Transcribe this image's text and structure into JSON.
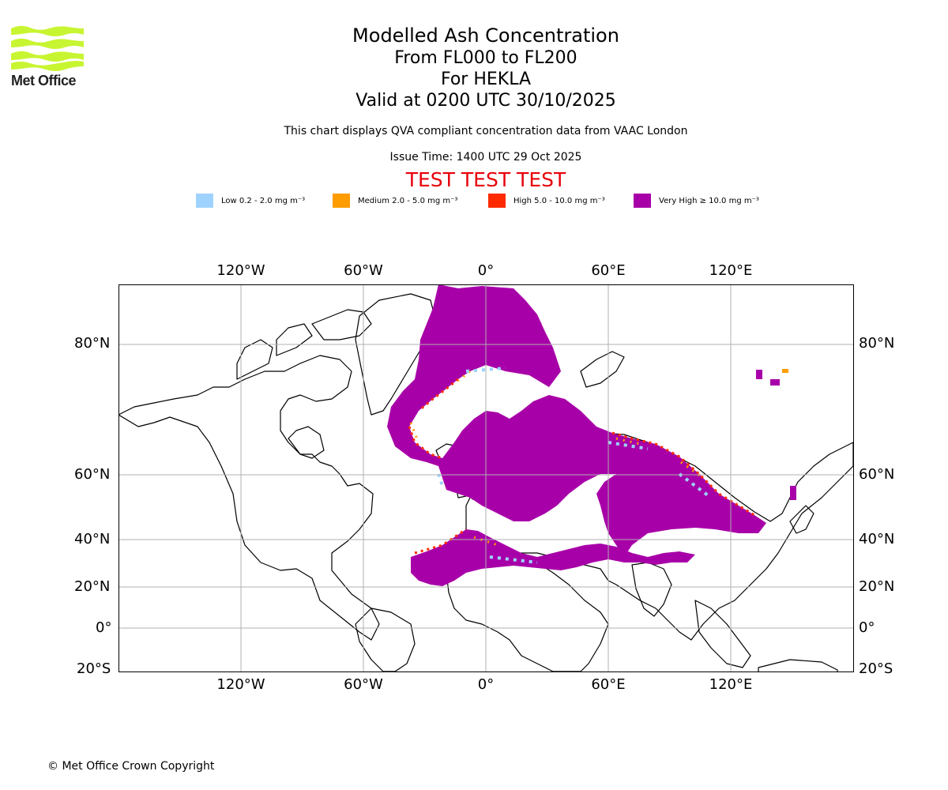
{
  "logo": {
    "text": "Met Office",
    "color": "#c8f531"
  },
  "title": {
    "main": "Modelled Ash Concentration",
    "levels": "From FL000 to FL200",
    "volcano": "For HEKLA",
    "valid": "Valid at 0200 UTC 30/10/2025"
  },
  "note": "This chart displays QVA compliant concentration data from VAAC London",
  "issue_time": "Issue Time: 1400 UTC 29 Oct 2025",
  "test_banner": "TEST TEST TEST",
  "legend": [
    {
      "label": "Low 0.2 - 2.0 mg m⁻³",
      "color": "#9fd3ff"
    },
    {
      "label": "Medium 2.0 - 5.0 mg m⁻³",
      "color": "#ff9c00"
    },
    {
      "label": "High 5.0 - 10.0 mg m⁻³",
      "color": "#ff2a00"
    },
    {
      "label": "Very High ≥ 10.0 mg m⁻³",
      "color": "#a800a8"
    }
  ],
  "axes": {
    "lon_labels": [
      "120°W",
      "60°W",
      "0°",
      "60°E",
      "120°E"
    ],
    "lat_labels": [
      "80°N",
      "60°N",
      "40°N",
      "20°N",
      "0°",
      "20°S"
    ]
  },
  "map": {
    "grid_color": "#b0b0b0",
    "coast_color": "#000000"
  },
  "copyright": "© Met Office Crown Copyright"
}
